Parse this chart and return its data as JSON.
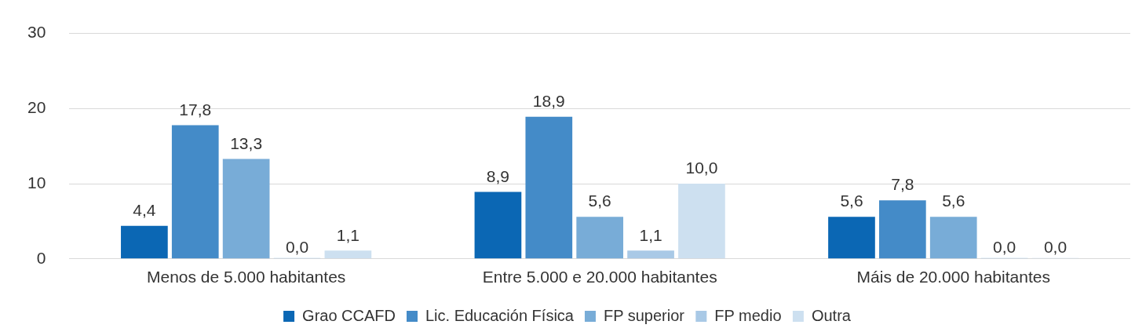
{
  "chart_data": {
    "type": "bar",
    "categories": [
      "Menos de 5.000 habitantes",
      "Entre 5.000 e 20.000 habitantes",
      "Máis de 20.000 habitantes"
    ],
    "series": [
      {
        "name": "Grao CCAFD",
        "color": "#0b67b4",
        "values": [
          4.4,
          8.9,
          5.6
        ],
        "value_labels": [
          "4,4",
          "8,9",
          "5,6"
        ]
      },
      {
        "name": "Lic. Educación Física",
        "color": "#448bc8",
        "values": [
          17.8,
          18.9,
          7.8
        ],
        "value_labels": [
          "17,8",
          "18,9",
          "7,8"
        ]
      },
      {
        "name": "FP superior",
        "color": "#78acd7",
        "values": [
          13.3,
          5.6,
          5.6
        ],
        "value_labels": [
          "13,3",
          "5,6",
          "5,6"
        ]
      },
      {
        "name": "FP medio",
        "color": "#a9c9e6",
        "values": [
          0.0,
          1.1,
          0.0
        ],
        "value_labels": [
          "0,0",
          "1,1",
          "0,0"
        ]
      },
      {
        "name": "Outra",
        "color": "#cde0f0",
        "values": [
          1.1,
          10.0,
          0.0
        ],
        "value_labels": [
          "1,1",
          "10,0",
          "0,0"
        ]
      }
    ],
    "ylim": [
      0,
      30
    ],
    "yticks": [
      0,
      10,
      20,
      30
    ],
    "grid": "y",
    "legend": "bottom"
  }
}
